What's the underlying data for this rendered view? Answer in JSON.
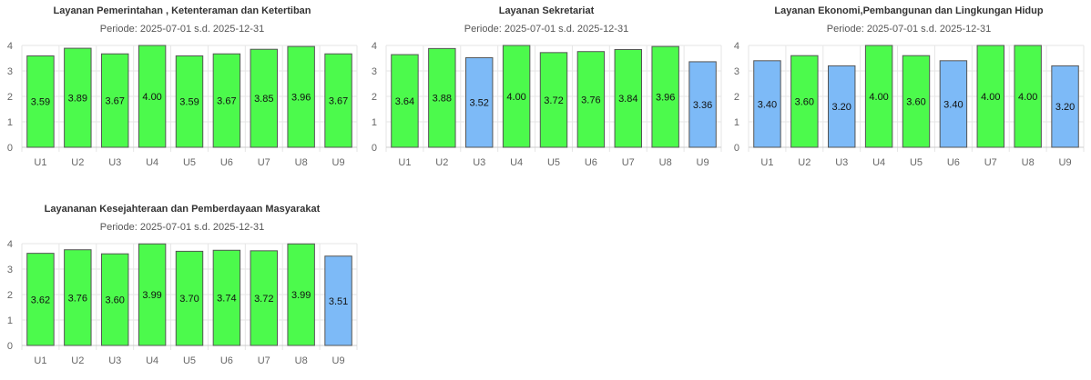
{
  "colors": {
    "above": "#4cfa4c",
    "below": "#7dbaf7",
    "border": "#555555",
    "grid": "#e6e6e6"
  },
  "chart_data": [
    {
      "type": "bar",
      "title": "Layanan Pemerintahan , Ketenteraman dan Ketertiban",
      "subtitle": "Periode: 2025-07-01 s.d. 2025-12-31",
      "categories": [
        "U1",
        "U2",
        "U3",
        "U4",
        "U5",
        "U6",
        "U7",
        "U8",
        "U9"
      ],
      "values": [
        3.59,
        3.89,
        3.67,
        4.0,
        3.59,
        3.67,
        3.85,
        3.96,
        3.67
      ],
      "labels": [
        "3.59",
        "3.89",
        "3.67",
        "4.00",
        "3.59",
        "3.67",
        "3.85",
        "3.96",
        "3.67"
      ],
      "status": [
        "above",
        "above",
        "above",
        "above",
        "above",
        "above",
        "above",
        "above",
        "above"
      ],
      "ylim": [
        0,
        4
      ],
      "yticks": [
        "0",
        "1",
        "2",
        "3",
        "4"
      ],
      "grid": true
    },
    {
      "type": "bar",
      "title": "Layanan Sekretariat",
      "subtitle": "Periode: 2025-07-01 s.d. 2025-12-31",
      "categories": [
        "U1",
        "U2",
        "U3",
        "U4",
        "U5",
        "U6",
        "U7",
        "U8",
        "U9"
      ],
      "values": [
        3.64,
        3.88,
        3.52,
        4.0,
        3.72,
        3.76,
        3.84,
        3.96,
        3.36
      ],
      "labels": [
        "3.64",
        "3.88",
        "3.52",
        "4.00",
        "3.72",
        "3.76",
        "3.84",
        "3.96",
        "3.36"
      ],
      "status": [
        "above",
        "above",
        "below",
        "above",
        "above",
        "above",
        "above",
        "above",
        "below"
      ],
      "ylim": [
        0,
        4
      ],
      "yticks": [
        "0",
        "1",
        "2",
        "3",
        "4"
      ],
      "grid": true
    },
    {
      "type": "bar",
      "title": "Layanan Ekonomi,Pembangunan dan Lingkungan Hidup",
      "subtitle": "Periode: 2025-07-01 s.d. 2025-12-31",
      "categories": [
        "U1",
        "U2",
        "U3",
        "U4",
        "U5",
        "U6",
        "U7",
        "U8",
        "U9"
      ],
      "values": [
        3.4,
        3.6,
        3.2,
        4.0,
        3.6,
        3.4,
        4.0,
        4.0,
        3.2
      ],
      "labels": [
        "3.40",
        "3.60",
        "3.20",
        "4.00",
        "3.60",
        "3.40",
        "4.00",
        "4.00",
        "3.20"
      ],
      "status": [
        "below",
        "above",
        "below",
        "above",
        "above",
        "below",
        "above",
        "above",
        "below"
      ],
      "ylim": [
        0,
        4
      ],
      "yticks": [
        "0",
        "1",
        "2",
        "3",
        "4"
      ],
      "grid": true
    },
    {
      "type": "bar",
      "title": "Layananan Kesejahteraan dan Pemberdayaan Masyarakat",
      "subtitle": "Periode: 2025-07-01 s.d. 2025-12-31",
      "categories": [
        "U1",
        "U2",
        "U3",
        "U4",
        "U5",
        "U6",
        "U7",
        "U8",
        "U9"
      ],
      "values": [
        3.62,
        3.76,
        3.6,
        3.99,
        3.7,
        3.74,
        3.72,
        3.99,
        3.51
      ],
      "labels": [
        "3.62",
        "3.76",
        "3.60",
        "3.99",
        "3.70",
        "3.74",
        "3.72",
        "3.99",
        "3.51"
      ],
      "status": [
        "above",
        "above",
        "above",
        "above",
        "above",
        "above",
        "above",
        "above",
        "below"
      ],
      "ylim": [
        0,
        4
      ],
      "yticks": [
        "0",
        "1",
        "2",
        "3",
        "4"
      ],
      "grid": true
    }
  ]
}
